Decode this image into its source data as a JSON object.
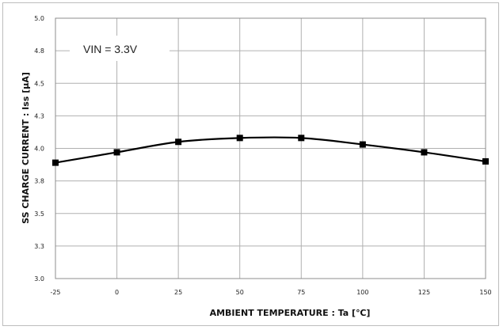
{
  "chart_data": {
    "type": "line",
    "title": "",
    "xlabel": "AMBIENT TEMPERATURE : Ta [℃]",
    "ylabel": "SS CHARGE CURRENT : Iss [μA]",
    "annotation": "VIN = 3.3V",
    "x_ticks": [
      "-25",
      "0",
      "25",
      "50",
      "75",
      "100",
      "125",
      "150"
    ],
    "y_ticks": [
      "3.0",
      "3.3",
      "3.5",
      "3.8",
      "4.0",
      "4.3",
      "4.5",
      "4.8",
      "5.0"
    ],
    "xlim": [
      -25,
      150
    ],
    "ylim": [
      3.0,
      5.0
    ],
    "grid": true,
    "series": [
      {
        "x": [
          -25,
          0,
          25,
          50,
          75,
          100,
          125,
          150
        ],
        "y": [
          3.89,
          3.97,
          4.05,
          4.08,
          4.08,
          4.03,
          3.97,
          3.9
        ]
      }
    ],
    "colors": {
      "line": "#000000",
      "grid": "#b0b0b0"
    }
  }
}
